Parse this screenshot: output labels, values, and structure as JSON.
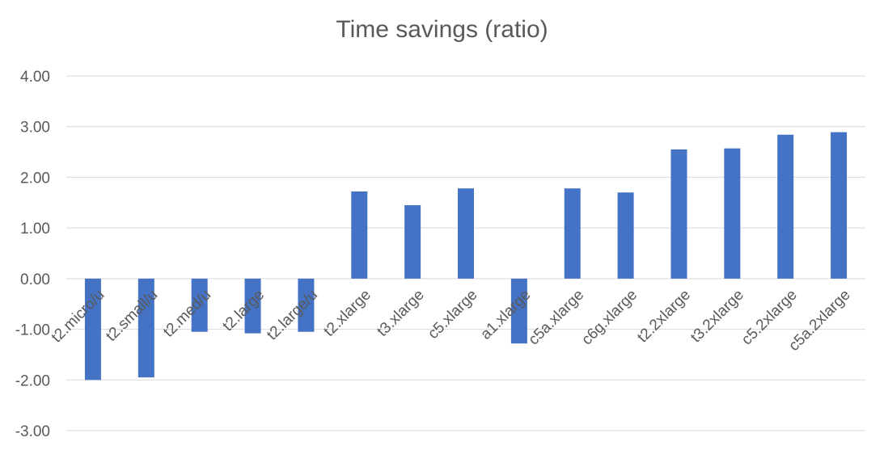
{
  "chart_data": {
    "type": "bar",
    "title": "Time savings (ratio)",
    "xlabel": "",
    "ylabel": "",
    "ylim": [
      -3,
      4
    ],
    "yticks": [
      4,
      3,
      2,
      1,
      0,
      -1,
      -2,
      -3
    ],
    "ytick_labels": [
      "4.00",
      "3.00",
      "2.00",
      "1.00",
      "0.00",
      "-1.00",
      "-2.00",
      "-3.00"
    ],
    "grid": true,
    "legend": "none",
    "categories": [
      "t2.micro/u",
      "t2.small/u",
      "t2.med/u",
      "t2.large",
      "t2.large/u",
      "t2.xlarge",
      "t3.xlarge",
      "c5.xlarge",
      "a1.xlarge",
      "c5a.xlarge",
      "c6g.xlarge",
      "t2.2xlarge",
      "t3.2xlarge",
      "c5.2xlarge",
      "c5a.2xlarge"
    ],
    "values": [
      -2.0,
      -1.95,
      -1.05,
      -1.08,
      -1.05,
      1.72,
      1.45,
      1.78,
      -1.28,
      1.78,
      1.7,
      2.55,
      2.57,
      2.84,
      2.89
    ],
    "colors": {
      "bar": "#4472c4",
      "grid": "#d9d9d9",
      "text": "#595959"
    }
  }
}
